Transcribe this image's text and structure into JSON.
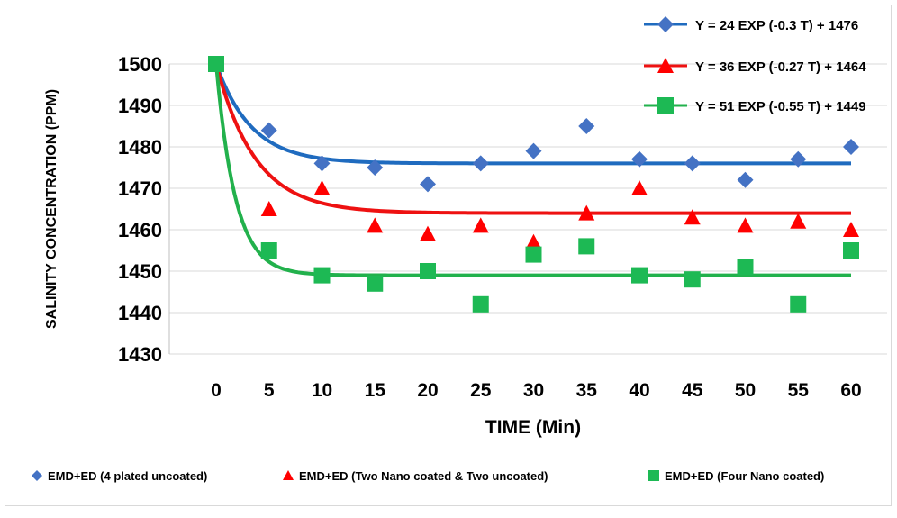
{
  "chart_data": {
    "type": "scatter",
    "title": "",
    "xlabel": "TIME (Min)",
    "ylabel": "SALINITY CONCENTRATION (PPM)",
    "x_ticks": [
      "0",
      "5",
      "10",
      "15",
      "20",
      "25",
      "30",
      "35",
      "40",
      "45",
      "50",
      "55",
      "60"
    ],
    "y_ticks": [
      "1500",
      "1490",
      "1480",
      "1470",
      "1460",
      "1450",
      "1440",
      "1430"
    ],
    "xlim": [
      0,
      60
    ],
    "ylim": [
      1430,
      1500
    ],
    "grid": true,
    "legend_position": "bottom",
    "x": [
      0,
      5,
      10,
      15,
      20,
      25,
      30,
      35,
      40,
      45,
      50,
      55,
      60
    ],
    "series": [
      {
        "name": "EMD+ED (4 plated uncoated)",
        "marker": "diamond",
        "color": "#4472C4",
        "line_color": "#1F6BBF",
        "values": [
          1500,
          1484,
          1476,
          1475,
          1471,
          1476,
          1479,
          1485,
          1477,
          1476,
          1472,
          1477,
          1480
        ],
        "fit": {
          "a": 24,
          "b": 0.3,
          "c": 1476
        },
        "equation": "Y = 24 EXP (-0.3 T) + 1476"
      },
      {
        "name": "EMD+ED (Two Nano coated & Two uncoated)",
        "marker": "triangle",
        "color": "#FF0000",
        "line_color": "#EE1111",
        "values": [
          1500,
          1465,
          1470,
          1461,
          1459,
          1461,
          1457,
          1464,
          1470,
          1463,
          1461,
          1462,
          1460
        ],
        "fit": {
          "a": 36,
          "b": 0.27,
          "c": 1464
        },
        "equation": "Y = 36 EXP (-0.27 T) + 1464"
      },
      {
        "name": "EMD+ED (Four Nano coated)",
        "marker": "square",
        "color": "#1DB954",
        "line_color": "#22B14C",
        "values": [
          1500,
          1455,
          1449,
          1447,
          1450,
          1442,
          1454,
          1456,
          1449,
          1448,
          1451,
          1442,
          1455
        ],
        "fit": {
          "a": 51,
          "b": 0.55,
          "c": 1449
        },
        "equation": "Y = 51 EXP (-0.55 T) + 1449"
      }
    ]
  }
}
